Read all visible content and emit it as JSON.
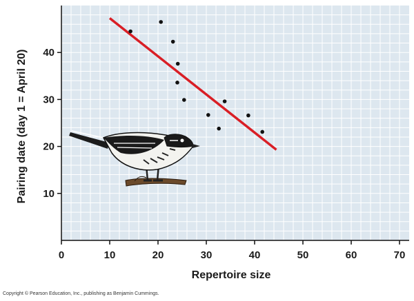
{
  "chart_data": {
    "type": "scatter",
    "xlabel": "Repertoire size",
    "ylabel": "Pairing date (day 1 = April 20)",
    "xlim": [
      0,
      72
    ],
    "ylim": [
      0,
      50
    ],
    "x_ticks": [
      "0",
      "10",
      "20",
      "30",
      "40",
      "50",
      "60",
      "70"
    ],
    "y_ticks": [
      "10",
      "20",
      "30",
      "40"
    ],
    "points": [
      {
        "x": 14.3,
        "y": 44.5
      },
      {
        "x": 20.6,
        "y": 46.5
      },
      {
        "x": 23.1,
        "y": 42.3
      },
      {
        "x": 24.1,
        "y": 37.6
      },
      {
        "x": 24.0,
        "y": 33.6
      },
      {
        "x": 25.4,
        "y": 29.9
      },
      {
        "x": 30.4,
        "y": 26.7
      },
      {
        "x": 32.6,
        "y": 23.8
      },
      {
        "x": 33.8,
        "y": 29.6
      },
      {
        "x": 38.7,
        "y": 26.6
      },
      {
        "x": 41.6,
        "y": 23.1
      }
    ],
    "trend_line": {
      "x1": 10,
      "y1": 47.3,
      "x2": 44.5,
      "y2": 19.3,
      "color": "#d91e25"
    },
    "plot_background": "#dde7ef",
    "grid_color": "#ffffff",
    "point_color": "#111111"
  },
  "copyright": "Copyright © Pearson Education, Inc., publishing as Benjamin Cummings."
}
